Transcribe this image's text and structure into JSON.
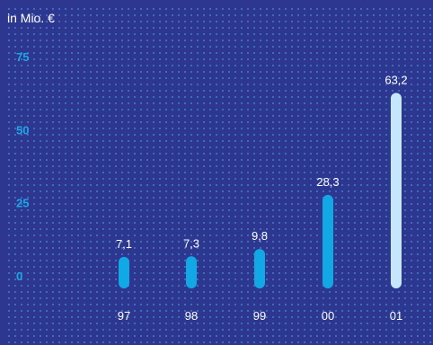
{
  "chart_data": {
    "type": "bar",
    "unit_label": "in Mio. €",
    "categories": [
      "97",
      "98",
      "99",
      "00",
      "01"
    ],
    "values": [
      7.1,
      7.3,
      9.8,
      28.3,
      63.2
    ],
    "value_labels": [
      "7,1",
      "7,3",
      "9,8",
      "28,3",
      "63,2"
    ],
    "yticks": [
      "0",
      "25",
      "50",
      "75"
    ],
    "ytick_values": [
      0,
      25,
      50,
      75
    ],
    "ylim": [
      0,
      75
    ],
    "grid": "dotted",
    "legend": "none"
  },
  "colors": {
    "background": "#2e3790",
    "grid_dot": "#3f7ec6",
    "tick_text": "#1ea7e8",
    "bar": "#12a8e6",
    "bar_highlight": "#c5e6fb",
    "label_text": "#ffffff"
  }
}
